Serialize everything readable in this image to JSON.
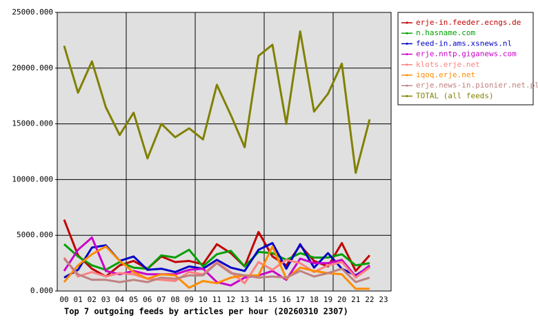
{
  "chart_data": {
    "type": "line",
    "title": "Top 7 outgoing feeds by articles per hour (20260310 2307)",
    "categories": [
      "00",
      "01",
      "02",
      "03",
      "04",
      "05",
      "06",
      "07",
      "08",
      "09",
      "10",
      "11",
      "12",
      "13",
      "14",
      "15",
      "16",
      "17",
      "18",
      "19",
      "20",
      "21",
      "22",
      "23"
    ],
    "ylim": [
      0,
      25000
    ],
    "yticks": [
      {
        "value": 0,
        "label": "0.000"
      },
      {
        "value": 5000,
        "label": "5000.000"
      },
      {
        "value": 10000,
        "label": "10000.000"
      },
      {
        "value": 15000,
        "label": "15000.000"
      },
      {
        "value": 20000,
        "label": "20000.000"
      },
      {
        "value": 25000,
        "label": "25000.000"
      }
    ],
    "grid": true,
    "legend": "right",
    "series": [
      {
        "name": "erje-in.feeder.ecngs.de",
        "color": "#c00000",
        "values": [
          6400,
          3200,
          2000,
          1300,
          2300,
          2700,
          2000,
          3100,
          2600,
          2700,
          2400,
          4200,
          3400,
          2200,
          5300,
          3100,
          2300,
          4100,
          2700,
          2200,
          4300,
          1800,
          3200,
          null
        ]
      },
      {
        "name": "n.hasname.com",
        "color": "#00a000",
        "values": [
          4200,
          3100,
          2300,
          1900,
          2600,
          2100,
          2000,
          3200,
          3000,
          3700,
          2200,
          3300,
          3600,
          2200,
          3500,
          3400,
          2800,
          3400,
          3000,
          3000,
          3300,
          2300,
          2500,
          null
        ]
      },
      {
        "name": "feed-in.ams.xsnews.nl",
        "color": "#0000c8",
        "values": [
          1200,
          1900,
          3900,
          4100,
          2700,
          3100,
          1900,
          2000,
          1700,
          2200,
          2000,
          2800,
          2100,
          1800,
          3700,
          4300,
          2000,
          4200,
          2100,
          3400,
          2000,
          1400,
          2200,
          null
        ]
      },
      {
        "name": "erje.nntp.giganews.com",
        "color": "#c800c8",
        "values": [
          1800,
          3700,
          4800,
          1800,
          1500,
          1800,
          1500,
          1500,
          1500,
          1900,
          2000,
          800,
          500,
          1200,
          1400,
          1800,
          1000,
          2900,
          2500,
          2500,
          2800,
          1300,
          2300,
          null
        ]
      },
      {
        "name": "klots.erje.net",
        "color": "#ff8080",
        "values": [
          3000,
          1300,
          1700,
          1300,
          1600,
          1500,
          1100,
          1000,
          900,
          1700,
          1500,
          2600,
          1700,
          700,
          2600,
          1900,
          2800,
          2500,
          1700,
          2300,
          2600,
          1200,
          2100,
          null
        ]
      },
      {
        "name": "iqoq.erje.net",
        "color": "#ff8c00",
        "values": [
          800,
          2300,
          3300,
          4000,
          2700,
          1700,
          1100,
          1500,
          1400,
          300,
          900,
          700,
          1200,
          1400,
          1400,
          4000,
          1100,
          2100,
          1800,
          1600,
          1500,
          200,
          200,
          null
        ]
      },
      {
        "name": "erje.news-in.pionier.net.pl",
        "color": "#c08080",
        "values": [
          2900,
          1500,
          1000,
          1000,
          800,
          1000,
          800,
          1200,
          1100,
          1400,
          1400,
          2500,
          1600,
          1400,
          1200,
          1300,
          1200,
          1800,
          1300,
          1600,
          2000,
          800,
          1200,
          null
        ]
      },
      {
        "name": "TOTAL (all feeds)",
        "color": "#808000",
        "values": [
          22000,
          17800,
          20600,
          16500,
          14000,
          16000,
          11900,
          15000,
          13800,
          14600,
          13600,
          18500,
          15800,
          12900,
          21100,
          22100,
          15000,
          23300,
          16100,
          17700,
          20400,
          10600,
          15400,
          null
        ]
      }
    ]
  }
}
